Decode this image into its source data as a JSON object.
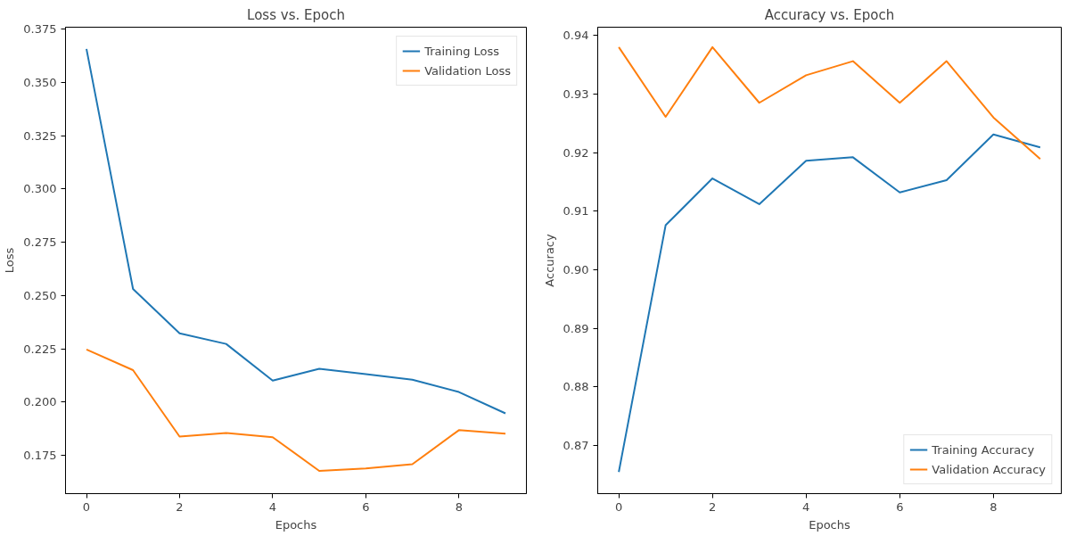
{
  "chart_data": [
    {
      "type": "line",
      "title": "Loss vs. Epoch",
      "xlabel": "Epochs",
      "ylabel": "Loss",
      "x": [
        0,
        1,
        2,
        3,
        4,
        5,
        6,
        7,
        8,
        9
      ],
      "xlim": [
        -0.45,
        9.45
      ],
      "xticks": [
        0,
        2,
        4,
        6,
        8
      ],
      "ylim": [
        0.157,
        0.376
      ],
      "yticks": [
        0.175,
        {
          "value": 0.2,
          "label": "0.200"
        },
        0.225,
        {
          "value": 0.25,
          "label": "0.250"
        },
        0.275,
        {
          "value": 0.3,
          "label": "0.300"
        },
        0.325,
        {
          "value": 0.35,
          "label": "0.350"
        },
        0.375
      ],
      "grid": false,
      "legend": "top right",
      "series": [
        {
          "name": "Training Loss",
          "color": "#1f77b4",
          "values": [
            0.3658,
            0.2531,
            0.2323,
            0.2273,
            0.2101,
            0.2156,
            0.2131,
            0.2105,
            0.2047,
            0.1947
          ]
        },
        {
          "name": "Validation Loss",
          "color": "#ff7f0e",
          "values": [
            0.2247,
            0.215,
            0.1838,
            0.1855,
            0.1835,
            0.1677,
            0.1688,
            0.1708,
            0.1868,
            0.1852
          ]
        }
      ]
    },
    {
      "type": "line",
      "title": "Accuracy vs. Epoch",
      "xlabel": "Epochs",
      "ylabel": "Accuracy",
      "x": [
        0,
        1,
        2,
        3,
        4,
        5,
        6,
        7,
        8,
        9
      ],
      "xlim": [
        -0.45,
        9.45
      ],
      "xticks": [
        0,
        2,
        4,
        6,
        8
      ],
      "ylim": [
        0.8618,
        0.9414
      ],
      "yticks": [
        0.87,
        0.88,
        0.89,
        {
          "value": 0.9,
          "label": "0.90"
        },
        0.91,
        0.92,
        0.93,
        0.94
      ],
      "grid": false,
      "legend": "bottom right",
      "series": [
        {
          "name": "Training Accuracy",
          "color": "#1f77b4",
          "values": [
            0.8655,
            0.9076,
            0.9156,
            0.9112,
            0.9186,
            0.9192,
            0.9132,
            0.9153,
            0.9231,
            0.9209
          ]
        },
        {
          "name": "Validation Accuracy",
          "color": "#ff7f0e",
          "values": [
            0.938,
            0.9261,
            0.938,
            0.9285,
            0.9332,
            0.9356,
            0.9285,
            0.9356,
            0.926,
            0.9189
          ]
        }
      ]
    }
  ]
}
